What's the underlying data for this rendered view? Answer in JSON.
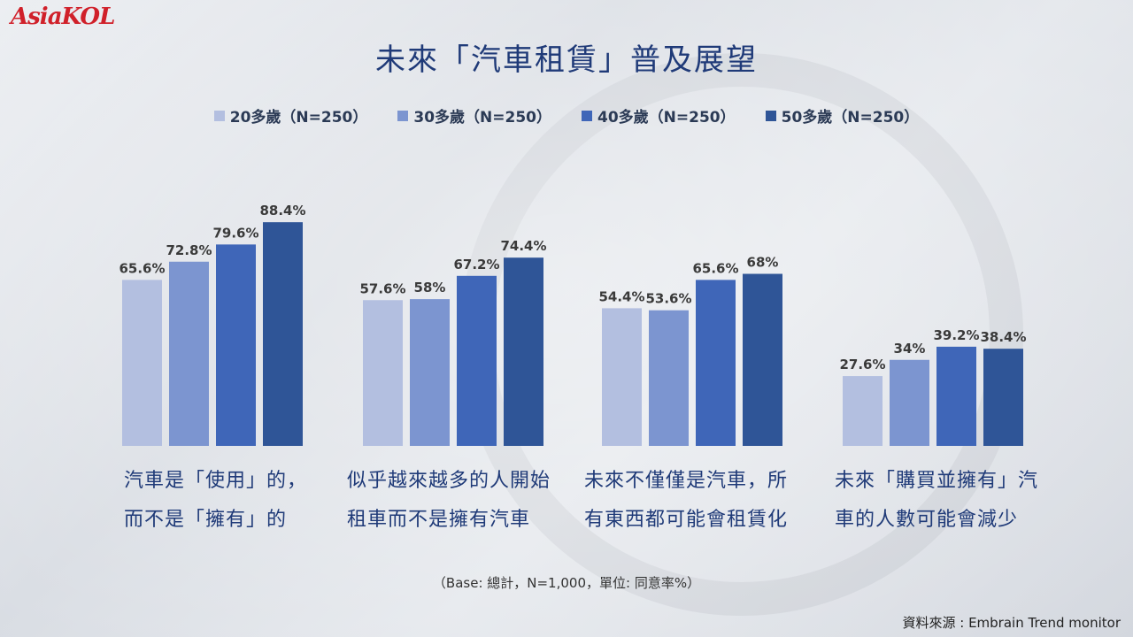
{
  "logo": "AsiaKOL",
  "chart_data": {
    "type": "bar",
    "title": "未來「汽車租賃」普及展望",
    "categories": [
      "汽車是「使用」的，而不是「擁有」的",
      "似乎越來越多的人開始租車而不是擁有汽車",
      "未來不僅僅是汽車，所有東西都可能會租賃化",
      "未來「購買並擁有」汽車的人數可能會減少"
    ],
    "category_lines": [
      [
        "汽車是「使用」的，",
        "而不是「擁有」的"
      ],
      [
        "似乎越來越多的人開始",
        "租車而不是擁有汽車"
      ],
      [
        "未來不僅僅是汽車，所",
        "有東西都可能會租賃化"
      ],
      [
        "未來「購買並擁有」汽",
        "車的人數可能會減少"
      ]
    ],
    "series": [
      {
        "name": "20多歲（N=250）",
        "values": [
          65.6,
          57.6,
          54.4,
          27.6
        ],
        "labels": [
          "65.6%",
          "57.6%",
          "54.4%",
          "27.6%"
        ],
        "color": "#b3bfe0"
      },
      {
        "name": "30多歲（N=250）",
        "values": [
          72.8,
          58,
          53.6,
          34
        ],
        "labels": [
          "72.8%",
          "58%",
          "53.6%",
          "34%"
        ],
        "color": "#7c95d0"
      },
      {
        "name": "40多歲（N=250）",
        "values": [
          79.6,
          67.2,
          65.6,
          39.2
        ],
        "labels": [
          "79.6%",
          "67.2%",
          "65.6%",
          "39.2%"
        ],
        "color": "#3f66b8"
      },
      {
        "name": "50多歲（N=250）",
        "values": [
          88.4,
          74.4,
          68,
          38.4
        ],
        "labels": [
          "88.4%",
          "74.4%",
          "68%",
          "38.4%"
        ],
        "color": "#2f5597"
      }
    ],
    "ylim": [
      0,
      100
    ],
    "legend_position": "top"
  },
  "base_note": "（Base: 總計，N=1,000，單位: 同意率%）",
  "source": "資料來源 : Embrain  Trend monitor"
}
